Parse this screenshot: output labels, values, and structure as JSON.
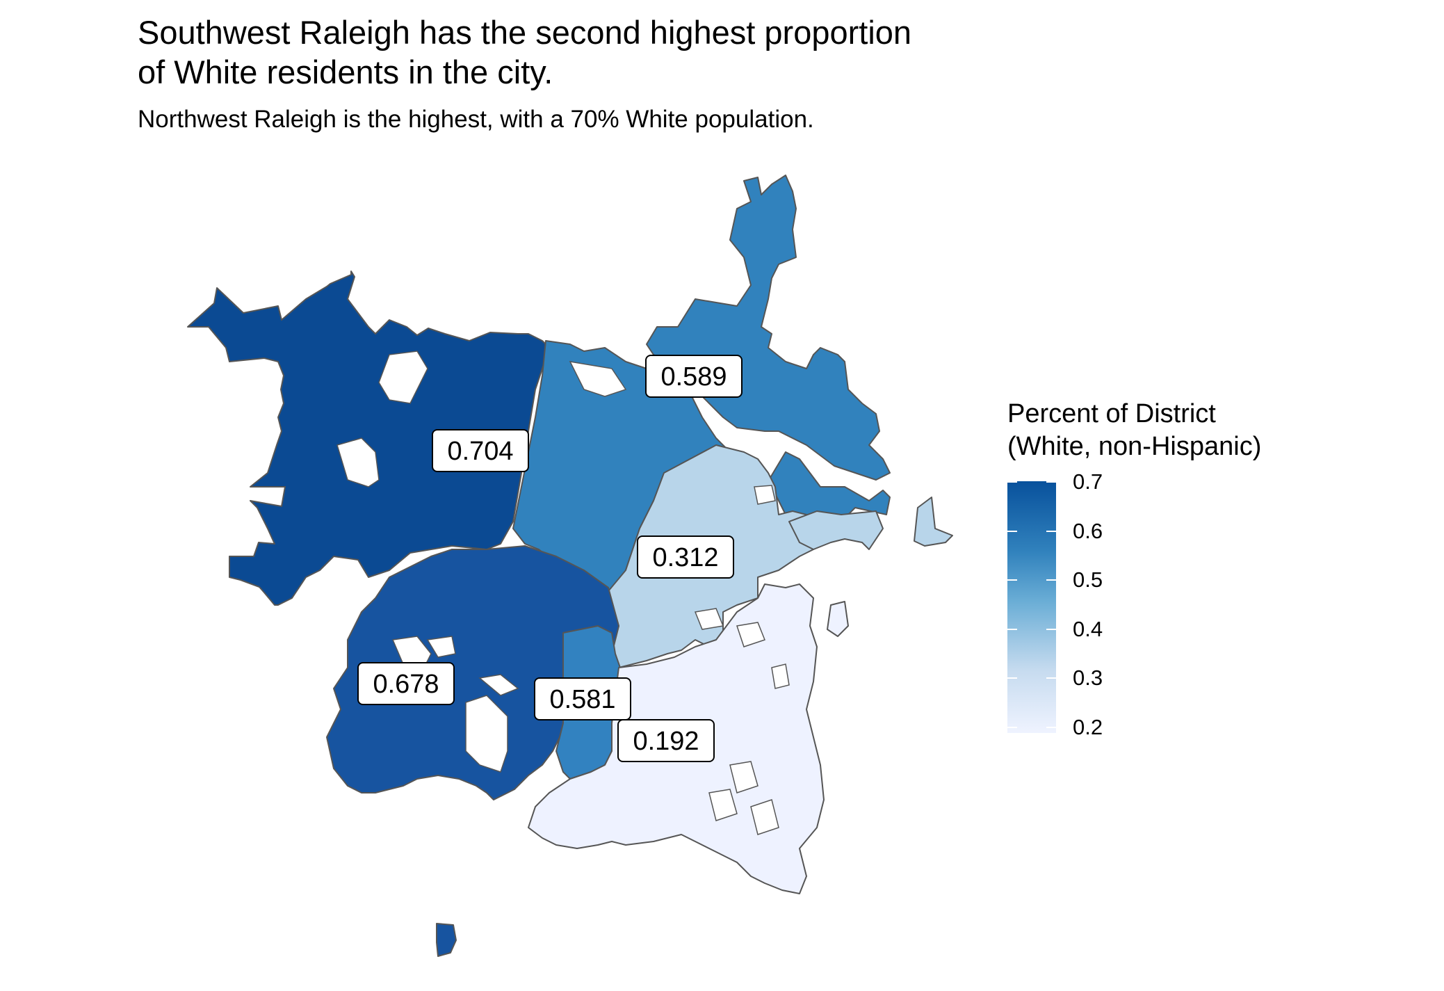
{
  "title": {
    "line1": "Southwest Raleigh has the second highest proportion",
    "line2": "of White residents in the city."
  },
  "subtitle": "Northwest Raleigh is the highest, with a 70% White population.",
  "legend": {
    "title_line1": "Percent of District",
    "title_line2": "(White, non-Hispanic)",
    "ticks": [
      "0.7",
      "0.6",
      "0.5",
      "0.4",
      "0.3",
      "0.2"
    ],
    "colors": [
      "#eff3ff",
      "#c6dbef",
      "#6baed6",
      "#3182bd",
      "#08519c"
    ]
  },
  "districts": [
    {
      "value": "0.704",
      "fill": "#0b4a93"
    },
    {
      "value": "0.589",
      "fill": "#3182bd"
    },
    {
      "value": "0.312",
      "fill": "#b8d5ea"
    },
    {
      "value": "0.678",
      "fill": "#1754a0"
    },
    {
      "value": "0.581",
      "fill": "#3282c0"
    },
    {
      "value": "0.192",
      "fill": "#eef2ff"
    }
  ]
}
